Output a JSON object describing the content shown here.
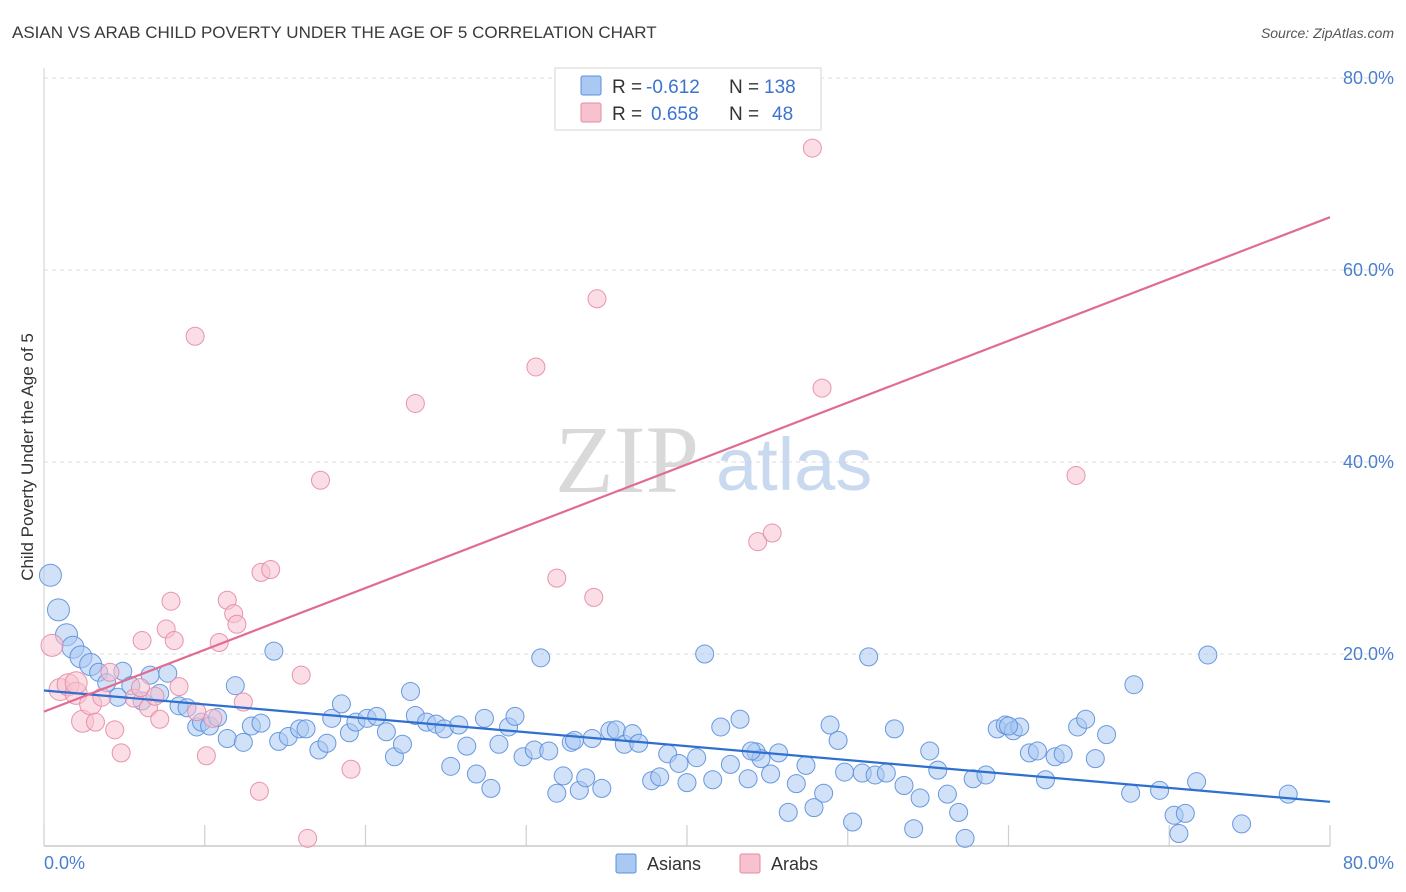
{
  "title": "ASIAN VS ARAB CHILD POVERTY UNDER THE AGE OF 5 CORRELATION CHART",
  "source": "Source: ZipAtlas.com",
  "watermark": {
    "zip": "ZIP",
    "atlas": "atlas"
  },
  "legend": {
    "rows": [
      {
        "r_label": "R = ",
        "r_value": "-0.612",
        "n_label": "N = ",
        "n_value": "138",
        "color": "#a9c8f2",
        "border": "#5b8fdc"
      },
      {
        "r_label": "R = ",
        "r_value": "0.658",
        "n_label": "N = ",
        "n_value": "48",
        "color": "#f7c1d0",
        "border": "#e58aa6"
      }
    ]
  },
  "bottom_legend": [
    {
      "label": "Asians",
      "color": "#a9c8f2",
      "border": "#5b8fdc"
    },
    {
      "label": "Arabs",
      "color": "#f7c1d0",
      "border": "#e58aa6"
    }
  ],
  "chart_data": {
    "type": "scatter",
    "title": "ASIAN VS ARAB CHILD POVERTY UNDER THE AGE OF 5 CORRELATION CHART",
    "xlabel": "",
    "ylabel": "Child Poverty Under the Age of 5",
    "xlim": [
      0,
      80
    ],
    "ylim": [
      0,
      84
    ],
    "x_tick_labels": [
      "0.0%",
      "80.0%"
    ],
    "y_ticks": [
      20,
      40,
      60,
      80
    ],
    "y_tick_labels": [
      "20.0%",
      "40.0%",
      "60.0%",
      "80.0%"
    ],
    "grid": "horizontal dashed",
    "legend_position": "top-center",
    "series": [
      {
        "name": "Asians",
        "color": "#a9c8f2",
        "stroke": "#5b8fdc",
        "trend": {
          "color": "#2f6fd0",
          "x": [
            0,
            80
          ],
          "y": [
            16.2,
            4.6
          ]
        },
        "points": [
          [
            0.4,
            28.2
          ],
          [
            0.9,
            24.6
          ],
          [
            1.4,
            22.0
          ],
          [
            1.8,
            20.7
          ],
          [
            2.3,
            19.7
          ],
          [
            2.9,
            18.9
          ],
          [
            3.4,
            18.1
          ],
          [
            3.9,
            17.0
          ],
          [
            4.6,
            15.5
          ],
          [
            4.9,
            18.2
          ],
          [
            5.4,
            16.7
          ],
          [
            6.1,
            15.1
          ],
          [
            6.6,
            17.8
          ],
          [
            7.2,
            15.9
          ],
          [
            7.7,
            18.0
          ],
          [
            8.4,
            14.6
          ],
          [
            8.9,
            14.4
          ],
          [
            9.5,
            12.4
          ],
          [
            9.8,
            12.9
          ],
          [
            10.3,
            12.5
          ],
          [
            10.8,
            13.4
          ],
          [
            11.4,
            11.2
          ],
          [
            11.9,
            16.7
          ],
          [
            12.4,
            10.8
          ],
          [
            12.9,
            12.5
          ],
          [
            13.5,
            12.8
          ],
          [
            14.3,
            20.3
          ],
          [
            14.6,
            10.9
          ],
          [
            15.2,
            11.4
          ],
          [
            15.9,
            12.2
          ],
          [
            16.3,
            12.2
          ],
          [
            17.1,
            10.0
          ],
          [
            17.6,
            10.7
          ],
          [
            17.9,
            13.3
          ],
          [
            18.5,
            14.8
          ],
          [
            19.0,
            11.8
          ],
          [
            19.4,
            12.9
          ],
          [
            20.1,
            13.3
          ],
          [
            20.7,
            13.5
          ],
          [
            21.3,
            11.9
          ],
          [
            21.8,
            9.3
          ],
          [
            22.3,
            10.6
          ],
          [
            22.8,
            16.1
          ],
          [
            23.1,
            13.6
          ],
          [
            23.8,
            12.9
          ],
          [
            24.4,
            12.7
          ],
          [
            24.9,
            12.2
          ],
          [
            25.3,
            8.3
          ],
          [
            25.8,
            12.6
          ],
          [
            26.3,
            10.4
          ],
          [
            26.9,
            7.5
          ],
          [
            27.4,
            13.3
          ],
          [
            27.8,
            6.0
          ],
          [
            28.3,
            10.6
          ],
          [
            28.9,
            12.4
          ],
          [
            29.3,
            13.5
          ],
          [
            29.8,
            9.3
          ],
          [
            30.5,
            10.0
          ],
          [
            30.9,
            19.6
          ],
          [
            31.4,
            9.9
          ],
          [
            31.9,
            5.5
          ],
          [
            32.3,
            7.3
          ],
          [
            32.8,
            10.8
          ],
          [
            33.3,
            5.8
          ],
          [
            33.7,
            7.1
          ],
          [
            34.1,
            11.2
          ],
          [
            34.7,
            6.0
          ],
          [
            35.2,
            12.0
          ],
          [
            35.6,
            12.1
          ],
          [
            36.1,
            10.6
          ],
          [
            36.6,
            11.7
          ],
          [
            37.0,
            10.7
          ],
          [
            37.8,
            6.8
          ],
          [
            38.3,
            7.2
          ],
          [
            38.8,
            9.6
          ],
          [
            39.5,
            8.6
          ],
          [
            40.0,
            6.6
          ],
          [
            40.6,
            9.2
          ],
          [
            41.1,
            20.0
          ],
          [
            41.6,
            6.9
          ],
          [
            42.1,
            12.4
          ],
          [
            42.7,
            8.5
          ],
          [
            43.3,
            13.2
          ],
          [
            43.8,
            7.0
          ],
          [
            44.3,
            9.8
          ],
          [
            44.6,
            9.1
          ],
          [
            45.2,
            7.5
          ],
          [
            45.7,
            9.7
          ],
          [
            46.3,
            3.5
          ],
          [
            46.8,
            6.5
          ],
          [
            47.4,
            8.4
          ],
          [
            47.9,
            4.0
          ],
          [
            48.5,
            5.5
          ],
          [
            48.9,
            12.6
          ],
          [
            49.4,
            11.0
          ],
          [
            49.8,
            7.7
          ],
          [
            50.3,
            2.5
          ],
          [
            50.9,
            7.6
          ],
          [
            51.3,
            19.7
          ],
          [
            51.7,
            7.4
          ],
          [
            52.4,
            7.6
          ],
          [
            52.9,
            12.2
          ],
          [
            53.5,
            6.3
          ],
          [
            54.1,
            1.8
          ],
          [
            54.5,
            5.0
          ],
          [
            55.1,
            9.9
          ],
          [
            55.6,
            7.9
          ],
          [
            56.2,
            5.4
          ],
          [
            56.9,
            3.5
          ],
          [
            57.3,
            0.8
          ],
          [
            57.8,
            7.0
          ],
          [
            58.6,
            7.4
          ],
          [
            59.3,
            12.2
          ],
          [
            59.8,
            12.6
          ],
          [
            60.3,
            12.0
          ],
          [
            60.7,
            12.4
          ],
          [
            61.3,
            9.7
          ],
          [
            61.8,
            9.9
          ],
          [
            62.3,
            6.9
          ],
          [
            62.9,
            9.3
          ],
          [
            63.4,
            9.6
          ],
          [
            64.3,
            12.4
          ],
          [
            64.8,
            13.2
          ],
          [
            65.4,
            9.1
          ],
          [
            66.1,
            11.6
          ],
          [
            67.6,
            5.5
          ],
          [
            67.8,
            16.8
          ],
          [
            69.4,
            5.8
          ],
          [
            70.3,
            3.2
          ],
          [
            70.6,
            1.3
          ],
          [
            71.0,
            3.4
          ],
          [
            71.7,
            6.7
          ],
          [
            72.4,
            19.9
          ],
          [
            74.5,
            2.3
          ],
          [
            77.4,
            5.4
          ],
          [
            33.0,
            11.0
          ],
          [
            60.0,
            12.5
          ],
          [
            44.0,
            9.9
          ]
        ]
      },
      {
        "name": "Arabs",
        "color": "#f7c1d0",
        "stroke": "#e58aa6",
        "trend": {
          "color": "#e06c93",
          "x": [
            0,
            80
          ],
          "y": [
            14.0,
            65.5
          ]
        },
        "points": [
          [
            0.5,
            20.9
          ],
          [
            1.0,
            16.3
          ],
          [
            1.5,
            16.8
          ],
          [
            2.0,
            15.9
          ],
          [
            2.4,
            13.0
          ],
          [
            2.9,
            14.8
          ],
          [
            3.2,
            12.9
          ],
          [
            3.6,
            15.5
          ],
          [
            4.1,
            18.1
          ],
          [
            4.4,
            12.1
          ],
          [
            4.8,
            9.7
          ],
          [
            5.6,
            15.4
          ],
          [
            6.1,
            21.4
          ],
          [
            6.5,
            14.4
          ],
          [
            6.9,
            15.6
          ],
          [
            7.2,
            13.2
          ],
          [
            7.6,
            22.6
          ],
          [
            7.9,
            25.5
          ],
          [
            8.1,
            21.4
          ],
          [
            8.4,
            16.6
          ],
          [
            9.4,
            53.1
          ],
          [
            9.5,
            14.0
          ],
          [
            10.1,
            9.4
          ],
          [
            10.5,
            13.3
          ],
          [
            10.9,
            21.2
          ],
          [
            11.4,
            25.6
          ],
          [
            11.8,
            24.2
          ],
          [
            12.0,
            23.1
          ],
          [
            12.4,
            15.0
          ],
          [
            13.4,
            5.7
          ],
          [
            13.5,
            28.5
          ],
          [
            14.1,
            28.8
          ],
          [
            16.0,
            17.8
          ],
          [
            16.4,
            0.8
          ],
          [
            17.2,
            38.1
          ],
          [
            19.1,
            8.0
          ],
          [
            23.1,
            46.1
          ],
          [
            30.6,
            49.9
          ],
          [
            31.9,
            27.9
          ],
          [
            34.2,
            25.9
          ],
          [
            34.4,
            57.0
          ],
          [
            44.4,
            31.7
          ],
          [
            45.3,
            32.6
          ],
          [
            47.8,
            72.7
          ],
          [
            48.4,
            47.7
          ],
          [
            64.2,
            38.6
          ],
          [
            2.0,
            17.0
          ],
          [
            6.0,
            16.5
          ]
        ]
      }
    ]
  }
}
